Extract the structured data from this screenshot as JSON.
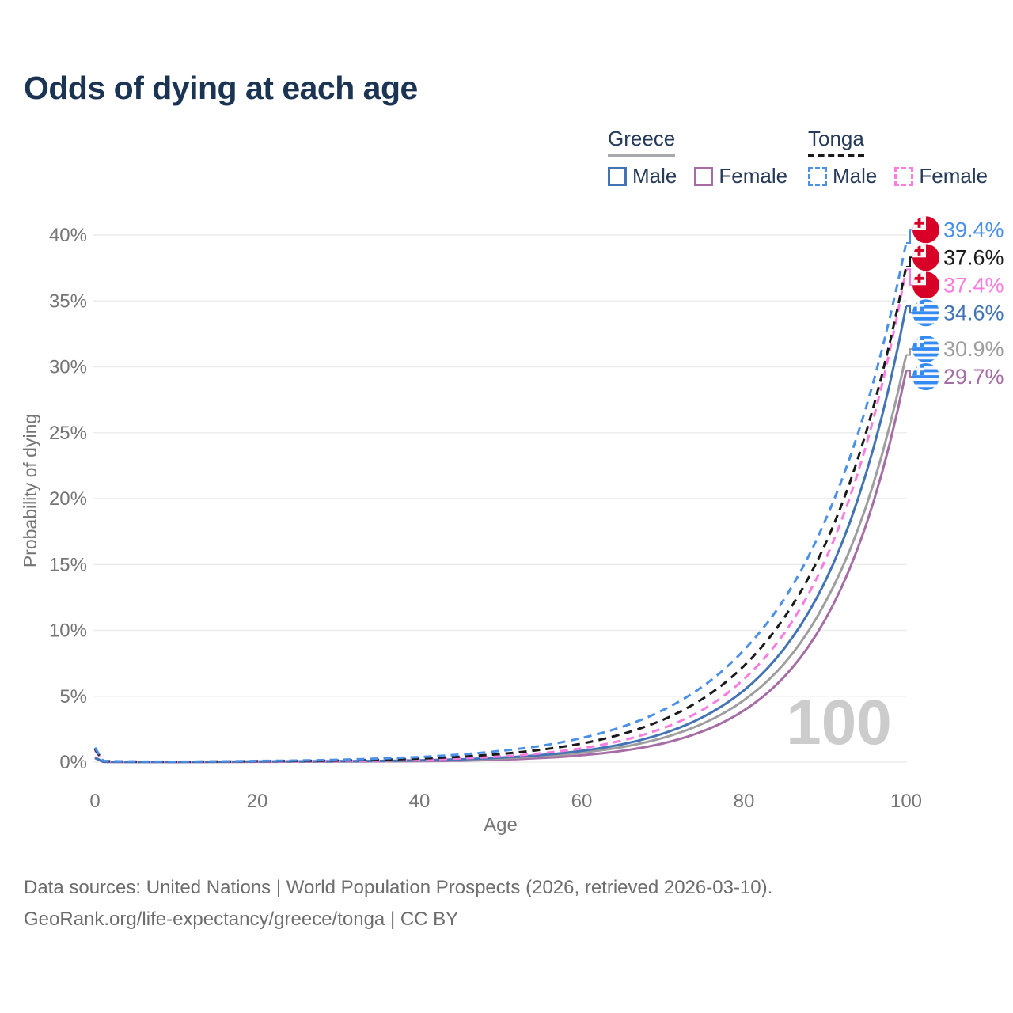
{
  "title": "Odds of dying at each age",
  "legend": {
    "groups": [
      {
        "label": "Greece",
        "line_style": "solid",
        "underline_color": "#a7a9ac",
        "items": [
          {
            "label": "Male",
            "color": "#4273b4"
          },
          {
            "label": "Female",
            "color": "#a56ca5"
          }
        ]
      },
      {
        "label": "Tonga",
        "line_style": "dashed",
        "underline_color": "#1a1a1a",
        "items": [
          {
            "label": "Male",
            "color": "#4a90e8"
          },
          {
            "label": "Female",
            "color": "#fb7be0"
          }
        ]
      }
    ]
  },
  "chart_data": {
    "type": "line",
    "title": "Odds of dying at each age",
    "xlabel": "Age",
    "ylabel": "Probability of dying",
    "xlim": [
      0,
      100
    ],
    "ylim": [
      0,
      40
    ],
    "grid": "horizontal",
    "legend_position": "top-right",
    "watermark": "100",
    "xticks": [
      {
        "label": "0",
        "value": 0
      },
      {
        "label": "20",
        "value": 20
      },
      {
        "label": "40",
        "value": 40
      },
      {
        "label": "60",
        "value": 60
      },
      {
        "label": "80",
        "value": 80
      },
      {
        "label": "100",
        "value": 100
      }
    ],
    "yticks": [
      {
        "label": "0%",
        "value": 0
      },
      {
        "label": "5%",
        "value": 5
      },
      {
        "label": "10%",
        "value": 10
      },
      {
        "label": "15%",
        "value": 15
      },
      {
        "label": "20%",
        "value": 20
      },
      {
        "label": "25%",
        "value": 25
      },
      {
        "label": "30%",
        "value": 30
      },
      {
        "label": "35%",
        "value": 35
      },
      {
        "label": "40%",
        "value": 40
      }
    ],
    "ages": [
      0,
      1,
      5,
      10,
      15,
      20,
      25,
      30,
      35,
      40,
      45,
      50,
      55,
      60,
      65,
      70,
      75,
      80,
      85,
      90,
      95,
      100
    ],
    "series": [
      {
        "name": "Tonga Male",
        "country": "Tonga",
        "sex": "Male",
        "color": "#4a90e8",
        "dashed": true,
        "flag": "tonga",
        "end_label": "39.4%",
        "values": [
          1.1,
          0.09,
          0.04,
          0.03,
          0.05,
          0.09,
          0.12,
          0.18,
          0.27,
          0.39,
          0.58,
          0.85,
          1.24,
          1.83,
          2.68,
          3.94,
          5.78,
          8.5,
          12.4,
          18.3,
          26.8,
          39.4
        ]
      },
      {
        "name": "Tonga Both sexes",
        "country": "Tonga",
        "sex": "Both",
        "color": "#1a1a1a",
        "dashed": true,
        "flag": "tonga",
        "end_label": "37.6%",
        "values": [
          1.0,
          0.08,
          0.035,
          0.025,
          0.04,
          0.07,
          0.09,
          0.12,
          0.18,
          0.27,
          0.41,
          0.62,
          0.94,
          1.41,
          2.13,
          3.21,
          4.84,
          7.3,
          11.0,
          16.5,
          24.9,
          37.6
        ]
      },
      {
        "name": "Tonga Female",
        "country": "Tonga",
        "sex": "Female",
        "color": "#fb7be0",
        "dashed": true,
        "flag": "tonga",
        "end_label": "37.4%",
        "values": [
          0.9,
          0.07,
          0.03,
          0.02,
          0.03,
          0.05,
          0.06,
          0.08,
          0.11,
          0.18,
          0.28,
          0.43,
          0.67,
          1.05,
          1.65,
          2.57,
          4.0,
          6.3,
          9.8,
          15.3,
          23.9,
          37.4
        ]
      },
      {
        "name": "Greece Male",
        "country": "Greece",
        "sex": "Male",
        "color": "#4273b4",
        "dashed": false,
        "flag": "greece",
        "end_label": "34.6%",
        "values": [
          0.35,
          0.03,
          0.015,
          0.012,
          0.03,
          0.05,
          0.06,
          0.07,
          0.09,
          0.14,
          0.21,
          0.34,
          0.54,
          0.86,
          1.36,
          2.16,
          3.44,
          5.45,
          8.65,
          13.7,
          21.8,
          34.6
        ]
      },
      {
        "name": "Greece Both sexes",
        "country": "Greece",
        "sex": "Both",
        "color": "#9e9e9e",
        "dashed": false,
        "flag": "greece",
        "end_label": "30.9%",
        "values": [
          0.32,
          0.028,
          0.013,
          0.01,
          0.02,
          0.04,
          0.045,
          0.055,
          0.07,
          0.11,
          0.18,
          0.28,
          0.45,
          0.72,
          1.15,
          1.84,
          2.94,
          4.7,
          7.5,
          12.1,
          19.3,
          30.9
        ]
      },
      {
        "name": "Greece Female",
        "country": "Greece",
        "sex": "Female",
        "color": "#a56ca5",
        "dashed": false,
        "flag": "greece",
        "end_label": "29.7%",
        "values": [
          0.3,
          0.025,
          0.012,
          0.009,
          0.015,
          0.025,
          0.03,
          0.04,
          0.055,
          0.07,
          0.11,
          0.19,
          0.31,
          0.52,
          0.86,
          1.42,
          2.36,
          3.92,
          6.5,
          10.8,
          17.9,
          29.7
        ]
      }
    ],
    "flag_colors": {
      "tonga_red": "#d80027",
      "tonga_white": "#f4f6f8",
      "greece_blue": "#338af3",
      "greece_white": "#f4f6f8"
    }
  },
  "footer": {
    "line1": "Data sources: United Nations | World Population Prospects (2026, retrieved 2026-03-10).",
    "line2": "GeoRank.org/life-expectancy/greece/tonga | CC BY"
  }
}
